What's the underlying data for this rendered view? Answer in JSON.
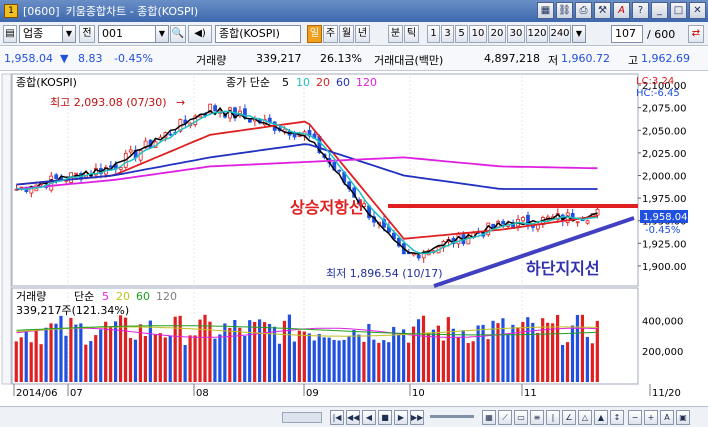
{
  "window": {
    "code": "[0600]",
    "title": "키움종합차트 - 종합(KOSPI)",
    "app_icon_label": "1"
  },
  "toolbar": {
    "category": "업종",
    "all_label": "전",
    "code_value": "001",
    "stock_name": "종합(KOSPI)",
    "period_buttons": [
      "일",
      "주",
      "월",
      "년",
      "분",
      "틱"
    ],
    "active_period": "일",
    "interval_buttons": [
      "1",
      "3",
      "5",
      "10",
      "20",
      "30",
      "120",
      "240"
    ],
    "page_value": "107",
    "page_total": "/ 600"
  },
  "infobar": {
    "price": "1,958.04",
    "change": "8.83",
    "change_pct": "-0.45%",
    "volume_label": "거래량",
    "volume_value": "339,217",
    "volume_ratio": "26.13%",
    "turnover_label": "거래대금(백만)",
    "turnover_value": "4,897,218",
    "low_label": "저",
    "low_value": "1,960.72",
    "high_label": "고",
    "high_value": "1,962.69"
  },
  "price_panel": {
    "name": "종합(KOSPI)",
    "ma_label": "종가 단순",
    "ma_periods": [
      "5",
      "10",
      "20",
      "60",
      "120"
    ],
    "lc_label": "LC:3.24",
    "hc_label": "HC:-6.45",
    "high_annot": "최고 2,093.08 (07/30)",
    "low_annot": "최저 1,896.54 (10/17)",
    "resistance_label": "상승저항선",
    "support_label": "하단지지선",
    "last_price_tag": "1,958.04",
    "last_pct_tag": "-0.45%",
    "y_ticks": [
      "2,100.00",
      "2,075.00",
      "2,050.00",
      "2,025.00",
      "2,000.00",
      "1,975.00",
      "1,950.00",
      "1,925.00",
      "1,900.00"
    ]
  },
  "volume_panel": {
    "name": "거래량",
    "ma_label": "단순",
    "ma_periods": [
      "5",
      "20",
      "60",
      "120"
    ],
    "volume_readout": "339,217주(121.34%)",
    "y_ticks": [
      "400,000",
      "200,000"
    ]
  },
  "x_axis": {
    "labels": [
      "2014/06",
      "07",
      "08",
      "09",
      "10",
      "11",
      "11/20"
    ]
  },
  "colors": {
    "ma5": "#000000",
    "ma10": "#20c0c0",
    "ma20": "#e02020",
    "ma60": "#2030c0",
    "ma120": "#e020e0",
    "up": "#e02020",
    "down": "#2050e0",
    "trend_line_resistance": "#e02020",
    "trend_line_support": "#4040c0"
  },
  "chart_data": {
    "type": "line",
    "title": "종합(KOSPI)",
    "x": [
      "2014/06",
      "07",
      "08",
      "09",
      "10",
      "11",
      "11/20"
    ],
    "series": [
      {
        "name": "5",
        "values": [
          1985,
          2010,
          2075,
          2045,
          1910,
          1945,
          1958
        ]
      },
      {
        "name": "20",
        "values": [
          1990,
          2000,
          2045,
          2060,
          1930,
          1940,
          1955
        ]
      },
      {
        "name": "60",
        "values": [
          1990,
          2000,
          2020,
          2035,
          2000,
          1985,
          1985
        ]
      },
      {
        "name": "120",
        "values": [
          1985,
          1995,
          2010,
          2015,
          2020,
          2010,
          2008
        ]
      }
    ],
    "ylim": [
      1880,
      2110
    ]
  },
  "bottombar": {
    "zoom_out": "−",
    "zoom_in": "+",
    "font_label": "A"
  }
}
